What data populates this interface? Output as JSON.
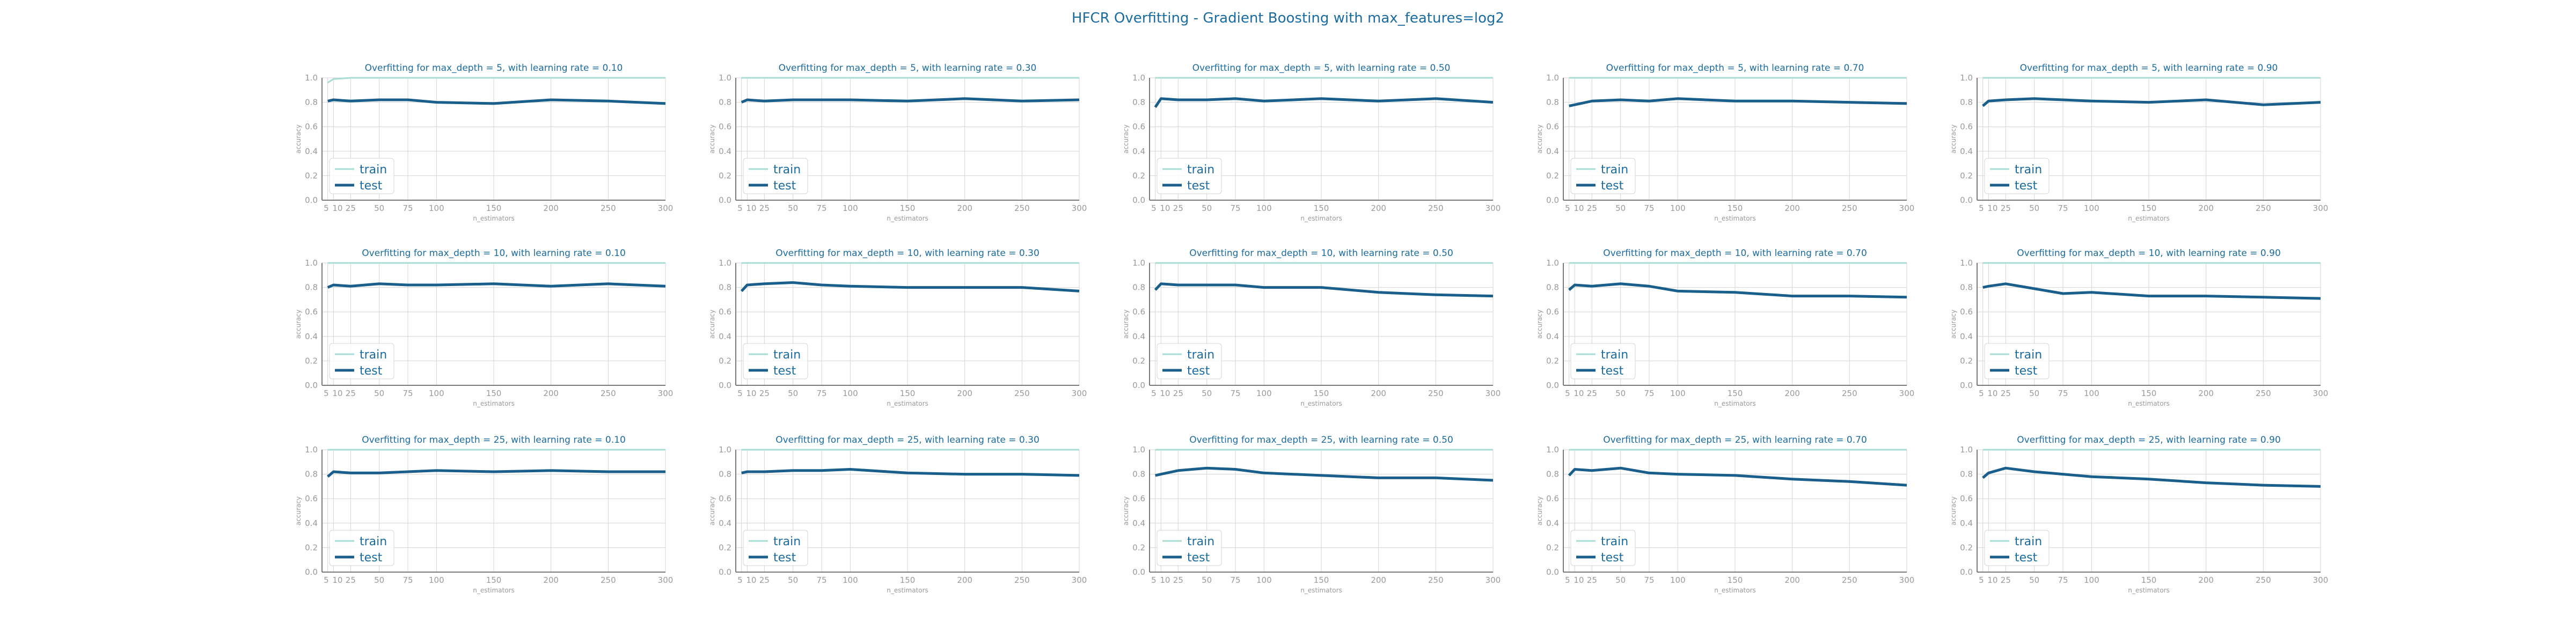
{
  "title": "HFCR Overfitting - Gradient Boosting with max_features=log2",
  "colors": {
    "train": "#a8dcd5",
    "test": "#1a5f8c",
    "title": "#1a6ba0"
  },
  "chart_data": [
    {
      "type": "line",
      "title": "Overfitting for max_depth = 5, with learning rate = 0.10",
      "xlabel": "n_estimators",
      "ylabel": "accuracy",
      "ylim": [
        0,
        1
      ],
      "x": [
        5,
        10,
        25,
        50,
        75,
        100,
        150,
        200,
        250,
        300
      ],
      "xticks": [
        5,
        10,
        25,
        50,
        75,
        100,
        150,
        200,
        250,
        300
      ],
      "yticks": [
        0.0,
        0.2,
        0.4,
        0.6,
        0.8,
        1.0
      ],
      "legend": "lower-left",
      "series": [
        {
          "name": "train",
          "values": [
            0.96,
            0.99,
            1.0,
            1.0,
            1.0,
            1.0,
            1.0,
            1.0,
            1.0,
            1.0
          ]
        },
        {
          "name": "test",
          "values": [
            0.81,
            0.82,
            0.81,
            0.82,
            0.82,
            0.8,
            0.79,
            0.82,
            0.81,
            0.79
          ]
        }
      ]
    },
    {
      "type": "line",
      "title": "Overfitting for max_depth = 5, with learning rate = 0.30",
      "xlabel": "n_estimators",
      "ylabel": "accuracy",
      "ylim": [
        0,
        1
      ],
      "x": [
        5,
        10,
        25,
        50,
        75,
        100,
        150,
        200,
        250,
        300
      ],
      "xticks": [
        5,
        10,
        25,
        50,
        75,
        100,
        150,
        200,
        250,
        300
      ],
      "yticks": [
        0.0,
        0.2,
        0.4,
        0.6,
        0.8,
        1.0
      ],
      "legend": "lower-left",
      "series": [
        {
          "name": "train",
          "values": [
            1.0,
            1.0,
            1.0,
            1.0,
            1.0,
            1.0,
            1.0,
            1.0,
            1.0,
            1.0
          ]
        },
        {
          "name": "test",
          "values": [
            0.8,
            0.82,
            0.81,
            0.82,
            0.82,
            0.82,
            0.81,
            0.83,
            0.81,
            0.82
          ]
        }
      ]
    },
    {
      "type": "line",
      "title": "Overfitting for max_depth = 5, with learning rate = 0.50",
      "xlabel": "n_estimators",
      "ylabel": "accuracy",
      "ylim": [
        0,
        1
      ],
      "x": [
        5,
        10,
        25,
        50,
        75,
        100,
        150,
        200,
        250,
        300
      ],
      "xticks": [
        5,
        10,
        25,
        50,
        75,
        100,
        150,
        200,
        250,
        300
      ],
      "yticks": [
        0.0,
        0.2,
        0.4,
        0.6,
        0.8,
        1.0
      ],
      "legend": "lower-left",
      "series": [
        {
          "name": "train",
          "values": [
            1.0,
            1.0,
            1.0,
            1.0,
            1.0,
            1.0,
            1.0,
            1.0,
            1.0,
            1.0
          ]
        },
        {
          "name": "test",
          "values": [
            0.76,
            0.83,
            0.82,
            0.82,
            0.83,
            0.81,
            0.83,
            0.81,
            0.83,
            0.8
          ]
        }
      ]
    },
    {
      "type": "line",
      "title": "Overfitting for max_depth = 5, with learning rate = 0.70",
      "xlabel": "n_estimators",
      "ylabel": "accuracy",
      "ylim": [
        0,
        1
      ],
      "x": [
        5,
        10,
        25,
        50,
        75,
        100,
        150,
        200,
        250,
        300
      ],
      "xticks": [
        5,
        10,
        25,
        50,
        75,
        100,
        150,
        200,
        250,
        300
      ],
      "yticks": [
        0.0,
        0.2,
        0.4,
        0.6,
        0.8,
        1.0
      ],
      "legend": "lower-left",
      "series": [
        {
          "name": "train",
          "values": [
            1.0,
            1.0,
            1.0,
            1.0,
            1.0,
            1.0,
            1.0,
            1.0,
            1.0,
            1.0
          ]
        },
        {
          "name": "test",
          "values": [
            0.77,
            0.78,
            0.81,
            0.82,
            0.81,
            0.83,
            0.81,
            0.81,
            0.8,
            0.79
          ]
        }
      ]
    },
    {
      "type": "line",
      "title": "Overfitting for max_depth = 5, with learning rate = 0.90",
      "xlabel": "n_estimators",
      "ylabel": "accuracy",
      "ylim": [
        0,
        1
      ],
      "x": [
        5,
        10,
        25,
        50,
        75,
        100,
        150,
        200,
        250,
        300
      ],
      "xticks": [
        5,
        10,
        25,
        50,
        75,
        100,
        150,
        200,
        250,
        300
      ],
      "yticks": [
        0.0,
        0.2,
        0.4,
        0.6,
        0.8,
        1.0
      ],
      "legend": "lower-left",
      "series": [
        {
          "name": "train",
          "values": [
            1.0,
            1.0,
            1.0,
            1.0,
            1.0,
            1.0,
            1.0,
            1.0,
            1.0,
            1.0
          ]
        },
        {
          "name": "test",
          "values": [
            0.77,
            0.81,
            0.82,
            0.83,
            0.82,
            0.81,
            0.8,
            0.82,
            0.78,
            0.8
          ]
        }
      ]
    },
    {
      "type": "line",
      "title": "Overfitting for max_depth = 10, with learning rate = 0.10",
      "xlabel": "n_estimators",
      "ylabel": "accuracy",
      "ylim": [
        0,
        1
      ],
      "x": [
        5,
        10,
        25,
        50,
        75,
        100,
        150,
        200,
        250,
        300
      ],
      "xticks": [
        5,
        10,
        25,
        50,
        75,
        100,
        150,
        200,
        250,
        300
      ],
      "yticks": [
        0.0,
        0.2,
        0.4,
        0.6,
        0.8,
        1.0
      ],
      "legend": "lower-left",
      "series": [
        {
          "name": "train",
          "values": [
            1.0,
            1.0,
            1.0,
            1.0,
            1.0,
            1.0,
            1.0,
            1.0,
            1.0,
            1.0
          ]
        },
        {
          "name": "test",
          "values": [
            0.8,
            0.82,
            0.81,
            0.83,
            0.82,
            0.82,
            0.83,
            0.81,
            0.83,
            0.81
          ]
        }
      ]
    },
    {
      "type": "line",
      "title": "Overfitting for max_depth = 10, with learning rate = 0.30",
      "xlabel": "n_estimators",
      "ylabel": "accuracy",
      "ylim": [
        0,
        1
      ],
      "x": [
        5,
        10,
        25,
        50,
        75,
        100,
        150,
        200,
        250,
        300
      ],
      "xticks": [
        5,
        10,
        25,
        50,
        75,
        100,
        150,
        200,
        250,
        300
      ],
      "yticks": [
        0.0,
        0.2,
        0.4,
        0.6,
        0.8,
        1.0
      ],
      "legend": "lower-left",
      "series": [
        {
          "name": "train",
          "values": [
            1.0,
            1.0,
            1.0,
            1.0,
            1.0,
            1.0,
            1.0,
            1.0,
            1.0,
            1.0
          ]
        },
        {
          "name": "test",
          "values": [
            0.77,
            0.82,
            0.83,
            0.84,
            0.82,
            0.81,
            0.8,
            0.8,
            0.8,
            0.77
          ]
        }
      ]
    },
    {
      "type": "line",
      "title": "Overfitting for max_depth = 10, with learning rate = 0.50",
      "xlabel": "n_estimators",
      "ylabel": "accuracy",
      "ylim": [
        0,
        1
      ],
      "x": [
        5,
        10,
        25,
        50,
        75,
        100,
        150,
        200,
        250,
        300
      ],
      "xticks": [
        5,
        10,
        25,
        50,
        75,
        100,
        150,
        200,
        250,
        300
      ],
      "yticks": [
        0.0,
        0.2,
        0.4,
        0.6,
        0.8,
        1.0
      ],
      "legend": "lower-left",
      "series": [
        {
          "name": "train",
          "values": [
            1.0,
            1.0,
            1.0,
            1.0,
            1.0,
            1.0,
            1.0,
            1.0,
            1.0,
            1.0
          ]
        },
        {
          "name": "test",
          "values": [
            0.78,
            0.83,
            0.82,
            0.82,
            0.82,
            0.8,
            0.8,
            0.76,
            0.74,
            0.73
          ]
        }
      ]
    },
    {
      "type": "line",
      "title": "Overfitting for max_depth = 10, with learning rate = 0.70",
      "xlabel": "n_estimators",
      "ylabel": "accuracy",
      "ylim": [
        0,
        1
      ],
      "x": [
        5,
        10,
        25,
        50,
        75,
        100,
        150,
        200,
        250,
        300
      ],
      "xticks": [
        5,
        10,
        25,
        50,
        75,
        100,
        150,
        200,
        250,
        300
      ],
      "yticks": [
        0.0,
        0.2,
        0.4,
        0.6,
        0.8,
        1.0
      ],
      "legend": "lower-left",
      "series": [
        {
          "name": "train",
          "values": [
            1.0,
            1.0,
            1.0,
            1.0,
            1.0,
            1.0,
            1.0,
            1.0,
            1.0,
            1.0
          ]
        },
        {
          "name": "test",
          "values": [
            0.78,
            0.82,
            0.81,
            0.83,
            0.81,
            0.77,
            0.76,
            0.73,
            0.73,
            0.72
          ]
        }
      ]
    },
    {
      "type": "line",
      "title": "Overfitting for max_depth = 10, with learning rate = 0.90",
      "xlabel": "n_estimators",
      "ylabel": "accuracy",
      "ylim": [
        0,
        1
      ],
      "x": [
        5,
        10,
        25,
        50,
        75,
        100,
        150,
        200,
        250,
        300
      ],
      "xticks": [
        5,
        10,
        25,
        50,
        75,
        100,
        150,
        200,
        250,
        300
      ],
      "yticks": [
        0.0,
        0.2,
        0.4,
        0.6,
        0.8,
        1.0
      ],
      "legend": "lower-left",
      "series": [
        {
          "name": "train",
          "values": [
            1.0,
            1.0,
            1.0,
            1.0,
            1.0,
            1.0,
            1.0,
            1.0,
            1.0,
            1.0
          ]
        },
        {
          "name": "test",
          "values": [
            0.8,
            0.81,
            0.83,
            0.79,
            0.75,
            0.76,
            0.73,
            0.73,
            0.72,
            0.71
          ]
        }
      ]
    },
    {
      "type": "line",
      "title": "Overfitting for max_depth = 25, with learning rate = 0.10",
      "xlabel": "n_estimators",
      "ylabel": "accuracy",
      "ylim": [
        0,
        1
      ],
      "x": [
        5,
        10,
        25,
        50,
        75,
        100,
        150,
        200,
        250,
        300
      ],
      "xticks": [
        5,
        10,
        25,
        50,
        75,
        100,
        150,
        200,
        250,
        300
      ],
      "yticks": [
        0.0,
        0.2,
        0.4,
        0.6,
        0.8,
        1.0
      ],
      "legend": "lower-left",
      "series": [
        {
          "name": "train",
          "values": [
            1.0,
            1.0,
            1.0,
            1.0,
            1.0,
            1.0,
            1.0,
            1.0,
            1.0,
            1.0
          ]
        },
        {
          "name": "test",
          "values": [
            0.78,
            0.82,
            0.81,
            0.81,
            0.82,
            0.83,
            0.82,
            0.83,
            0.82,
            0.82
          ]
        }
      ]
    },
    {
      "type": "line",
      "title": "Overfitting for max_depth = 25, with learning rate = 0.30",
      "xlabel": "n_estimators",
      "ylabel": "accuracy",
      "ylim": [
        0,
        1
      ],
      "x": [
        5,
        10,
        25,
        50,
        75,
        100,
        150,
        200,
        250,
        300
      ],
      "xticks": [
        5,
        10,
        25,
        50,
        75,
        100,
        150,
        200,
        250,
        300
      ],
      "yticks": [
        0.0,
        0.2,
        0.4,
        0.6,
        0.8,
        1.0
      ],
      "legend": "lower-left",
      "series": [
        {
          "name": "train",
          "values": [
            1.0,
            1.0,
            1.0,
            1.0,
            1.0,
            1.0,
            1.0,
            1.0,
            1.0,
            1.0
          ]
        },
        {
          "name": "test",
          "values": [
            0.81,
            0.82,
            0.82,
            0.83,
            0.83,
            0.84,
            0.81,
            0.8,
            0.8,
            0.79
          ]
        }
      ]
    },
    {
      "type": "line",
      "title": "Overfitting for max_depth = 25, with learning rate = 0.50",
      "xlabel": "n_estimators",
      "ylabel": "accuracy",
      "ylim": [
        0,
        1
      ],
      "x": [
        5,
        10,
        25,
        50,
        75,
        100,
        150,
        200,
        250,
        300
      ],
      "xticks": [
        5,
        10,
        25,
        50,
        75,
        100,
        150,
        200,
        250,
        300
      ],
      "yticks": [
        0.0,
        0.2,
        0.4,
        0.6,
        0.8,
        1.0
      ],
      "legend": "lower-left",
      "series": [
        {
          "name": "train",
          "values": [
            1.0,
            1.0,
            1.0,
            1.0,
            1.0,
            1.0,
            1.0,
            1.0,
            1.0,
            1.0
          ]
        },
        {
          "name": "test",
          "values": [
            0.79,
            0.8,
            0.83,
            0.85,
            0.84,
            0.81,
            0.79,
            0.77,
            0.77,
            0.75
          ]
        }
      ]
    },
    {
      "type": "line",
      "title": "Overfitting for max_depth = 25, with learning rate = 0.70",
      "xlabel": "n_estimators",
      "ylabel": "accuracy",
      "ylim": [
        0,
        1
      ],
      "x": [
        5,
        10,
        25,
        50,
        75,
        100,
        150,
        200,
        250,
        300
      ],
      "xticks": [
        5,
        10,
        25,
        50,
        75,
        100,
        150,
        200,
        250,
        300
      ],
      "yticks": [
        0.0,
        0.2,
        0.4,
        0.6,
        0.8,
        1.0
      ],
      "legend": "lower-left",
      "series": [
        {
          "name": "train",
          "values": [
            1.0,
            1.0,
            1.0,
            1.0,
            1.0,
            1.0,
            1.0,
            1.0,
            1.0,
            1.0
          ]
        },
        {
          "name": "test",
          "values": [
            0.79,
            0.84,
            0.83,
            0.85,
            0.81,
            0.8,
            0.79,
            0.76,
            0.74,
            0.71
          ]
        }
      ]
    },
    {
      "type": "line",
      "title": "Overfitting for max_depth = 25, with learning rate = 0.90",
      "xlabel": "n_estimators",
      "ylabel": "accuracy",
      "ylim": [
        0,
        1
      ],
      "x": [
        5,
        10,
        25,
        50,
        75,
        100,
        150,
        200,
        250,
        300
      ],
      "xticks": [
        5,
        10,
        25,
        50,
        75,
        100,
        150,
        200,
        250,
        300
      ],
      "yticks": [
        0.0,
        0.2,
        0.4,
        0.6,
        0.8,
        1.0
      ],
      "legend": "lower-left",
      "series": [
        {
          "name": "train",
          "values": [
            1.0,
            1.0,
            1.0,
            1.0,
            1.0,
            1.0,
            1.0,
            1.0,
            1.0,
            1.0
          ]
        },
        {
          "name": "test",
          "values": [
            0.77,
            0.81,
            0.85,
            0.82,
            0.8,
            0.78,
            0.76,
            0.73,
            0.71,
            0.7
          ]
        }
      ]
    }
  ]
}
